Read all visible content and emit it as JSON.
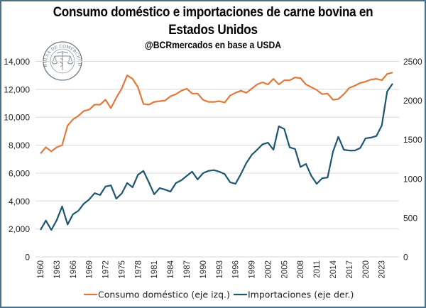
{
  "header": {
    "title_line1": "Consumo doméstico e importaciones de carne bovina en",
    "title_line2": "Estados Unidos",
    "subtitle": "@BCRmercados en base a USDA"
  },
  "logo": {
    "text": "BOLSA DE COMERCIO DE ROSARIO",
    "icon": "caduceus-scales-seal-icon"
  },
  "colors": {
    "consumo": "#e07a3a",
    "importaciones": "#1c5670",
    "grid": "#d9d9d9",
    "frame": "#4a7186"
  },
  "chart_data": {
    "type": "line",
    "title": "Consumo doméstico e importaciones de carne bovina en Estados Unidos",
    "subtitle": "@BCRmercados en base a USDA",
    "xlabel": "",
    "ylabel_left": "",
    "ylabel_right": "",
    "x": [
      1960,
      1961,
      1962,
      1963,
      1964,
      1965,
      1966,
      1967,
      1968,
      1969,
      1970,
      1971,
      1972,
      1973,
      1974,
      1975,
      1976,
      1977,
      1978,
      1979,
      1980,
      1981,
      1982,
      1983,
      1984,
      1985,
      1986,
      1987,
      1988,
      1989,
      1990,
      1991,
      1992,
      1993,
      1994,
      1995,
      1996,
      1997,
      1998,
      1999,
      2000,
      2001,
      2002,
      2003,
      2004,
      2005,
      2006,
      2007,
      2008,
      2009,
      2010,
      2011,
      2012,
      2013,
      2014,
      2015,
      2016,
      2017,
      2018,
      2019,
      2020,
      2021,
      2022,
      2023,
      2024,
      2025
    ],
    "x_tick_labels": [
      "1960",
      "1963",
      "1966",
      "1969",
      "1972",
      "1975",
      "1978",
      "1981",
      "1984",
      "1987",
      "1990",
      "1993",
      "1996",
      "1999",
      "2002",
      "2005",
      "2008",
      "2011",
      "2014",
      "2017",
      "2020",
      "2023"
    ],
    "y_left": {
      "range": [
        0,
        14000
      ],
      "ticks": [
        "0",
        "2,000",
        "4,000",
        "6,000",
        "8,000",
        "10,000",
        "12,000",
        "14,000"
      ]
    },
    "y_right": {
      "range": [
        0,
        2500
      ],
      "ticks": [
        "0",
        "500",
        "1000",
        "1500",
        "2000",
        "2500"
      ]
    },
    "grid": true,
    "legend_position": "bottom",
    "series": [
      {
        "name": "Consumo doméstico (eje izq.)",
        "axis": "left",
        "values": [
          7400,
          7850,
          7550,
          7850,
          8000,
          9400,
          9850,
          10100,
          10450,
          10550,
          10900,
          10900,
          11250,
          10650,
          11400,
          12050,
          13000,
          12750,
          12150,
          10950,
          10900,
          11100,
          11150,
          11200,
          11500,
          11650,
          11900,
          12050,
          11700,
          11700,
          11250,
          11100,
          11100,
          11150,
          11050,
          11550,
          11750,
          11900,
          11750,
          12050,
          12350,
          12500,
          12350,
          12750,
          12350,
          12650,
          12650,
          12850,
          12800,
          12350,
          12150,
          11950,
          11650,
          11700,
          11250,
          11300,
          11650,
          12100,
          12250,
          12450,
          12550,
          12700,
          12750,
          12650,
          13100,
          13200
        ]
      },
      {
        "name": "Importaciones (eje der.)",
        "axis": "right",
        "values": [
          345,
          465,
          345,
          470,
          645,
          415,
          545,
          590,
          680,
          735,
          815,
          790,
          900,
          915,
          745,
          810,
          945,
          890,
          1050,
          1100,
          955,
          800,
          880,
          860,
          835,
          945,
          980,
          1035,
          1090,
          990,
          1070,
          1100,
          1110,
          1090,
          1060,
          955,
          935,
          1060,
          1200,
          1305,
          1370,
          1440,
          1460,
          1370,
          1670,
          1635,
          1400,
          1380,
          1150,
          1190,
          1035,
          935,
          1005,
          1015,
          1345,
          1535,
          1370,
          1360,
          1360,
          1390,
          1515,
          1525,
          1545,
          1680,
          2115,
          2215
        ]
      }
    ]
  }
}
